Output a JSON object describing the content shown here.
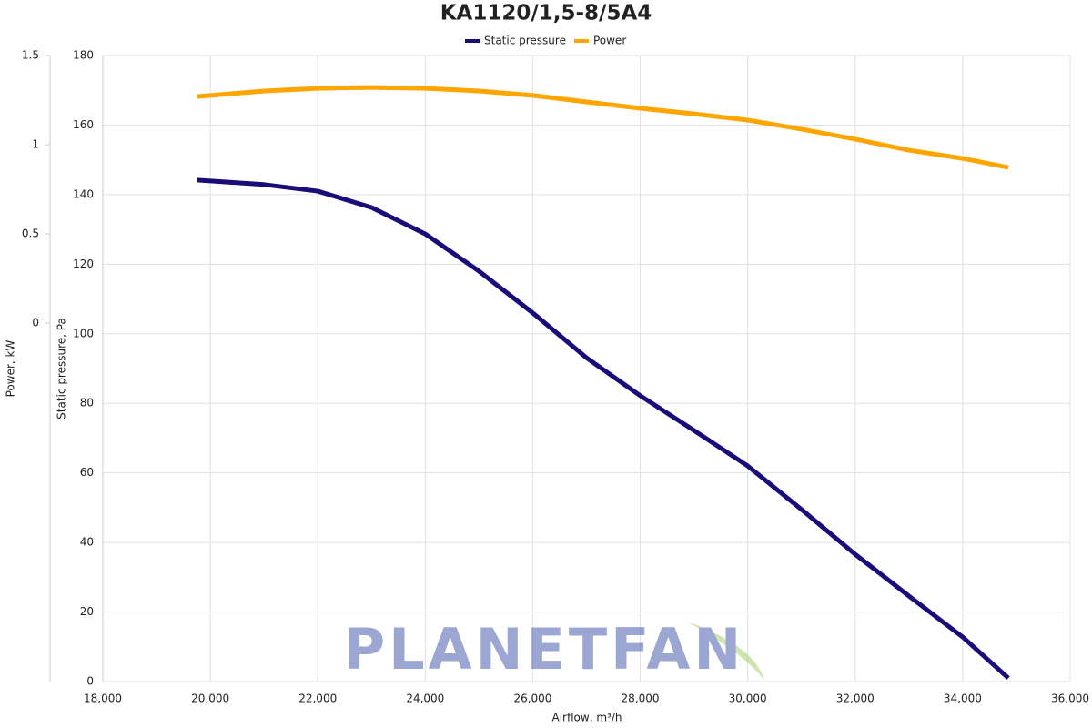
{
  "chart_data": {
    "type": "line",
    "title": "KA1120/1,5-8/5A4",
    "xlabel": "Airflow, m³/h",
    "ylabel": "Static pressure, Pa",
    "y2label": "Power, kW",
    "watermark": "PLANETFAN",
    "x": [
      19750,
      21000,
      22000,
      23000,
      24000,
      25000,
      26000,
      27000,
      28000,
      29000,
      30000,
      31000,
      32000,
      33000,
      34000,
      34850
    ],
    "series": [
      {
        "name": "Static pressure",
        "color": "#1a0b7a",
        "values": [
          144.2,
          142.9,
          141,
          136.3,
          128.7,
          118,
          106,
          93.1,
          82.2,
          72.2,
          62,
          49.5,
          36.6,
          24.6,
          12.8,
          1
        ]
      },
      {
        "name": "Power",
        "color": "#ffa500",
        "axis": "y2",
        "values": [
          1.27,
          1.301,
          1.316,
          1.321,
          1.316,
          1.301,
          1.276,
          1.24,
          1.204,
          1.173,
          1.138,
          1.087,
          1.031,
          0.969,
          0.923,
          0.872
        ]
      }
    ],
    "xlim": [
      18000,
      36000
    ],
    "xticks": [
      {
        "value": 18000,
        "label": "18,000"
      },
      {
        "value": 20000,
        "label": "20,000"
      },
      {
        "value": 22000,
        "label": "22,000"
      },
      {
        "value": 24000,
        "label": "24,000"
      },
      {
        "value": 26000,
        "label": "26,000"
      },
      {
        "value": 28000,
        "label": "28,000"
      },
      {
        "value": 30000,
        "label": "30,000"
      },
      {
        "value": 32000,
        "label": "32,000"
      },
      {
        "value": 34000,
        "label": "34,000"
      },
      {
        "value": 36000,
        "label": "36,000"
      }
    ],
    "ylim": [
      0,
      180
    ],
    "yticks": [
      0,
      20,
      40,
      60,
      80,
      100,
      120,
      140,
      160,
      180
    ],
    "y2lim": [
      -2.01,
      1.5
    ],
    "y2ticks": [
      0,
      0.5,
      1,
      1.5
    ],
    "grid": true,
    "legend": "top"
  }
}
